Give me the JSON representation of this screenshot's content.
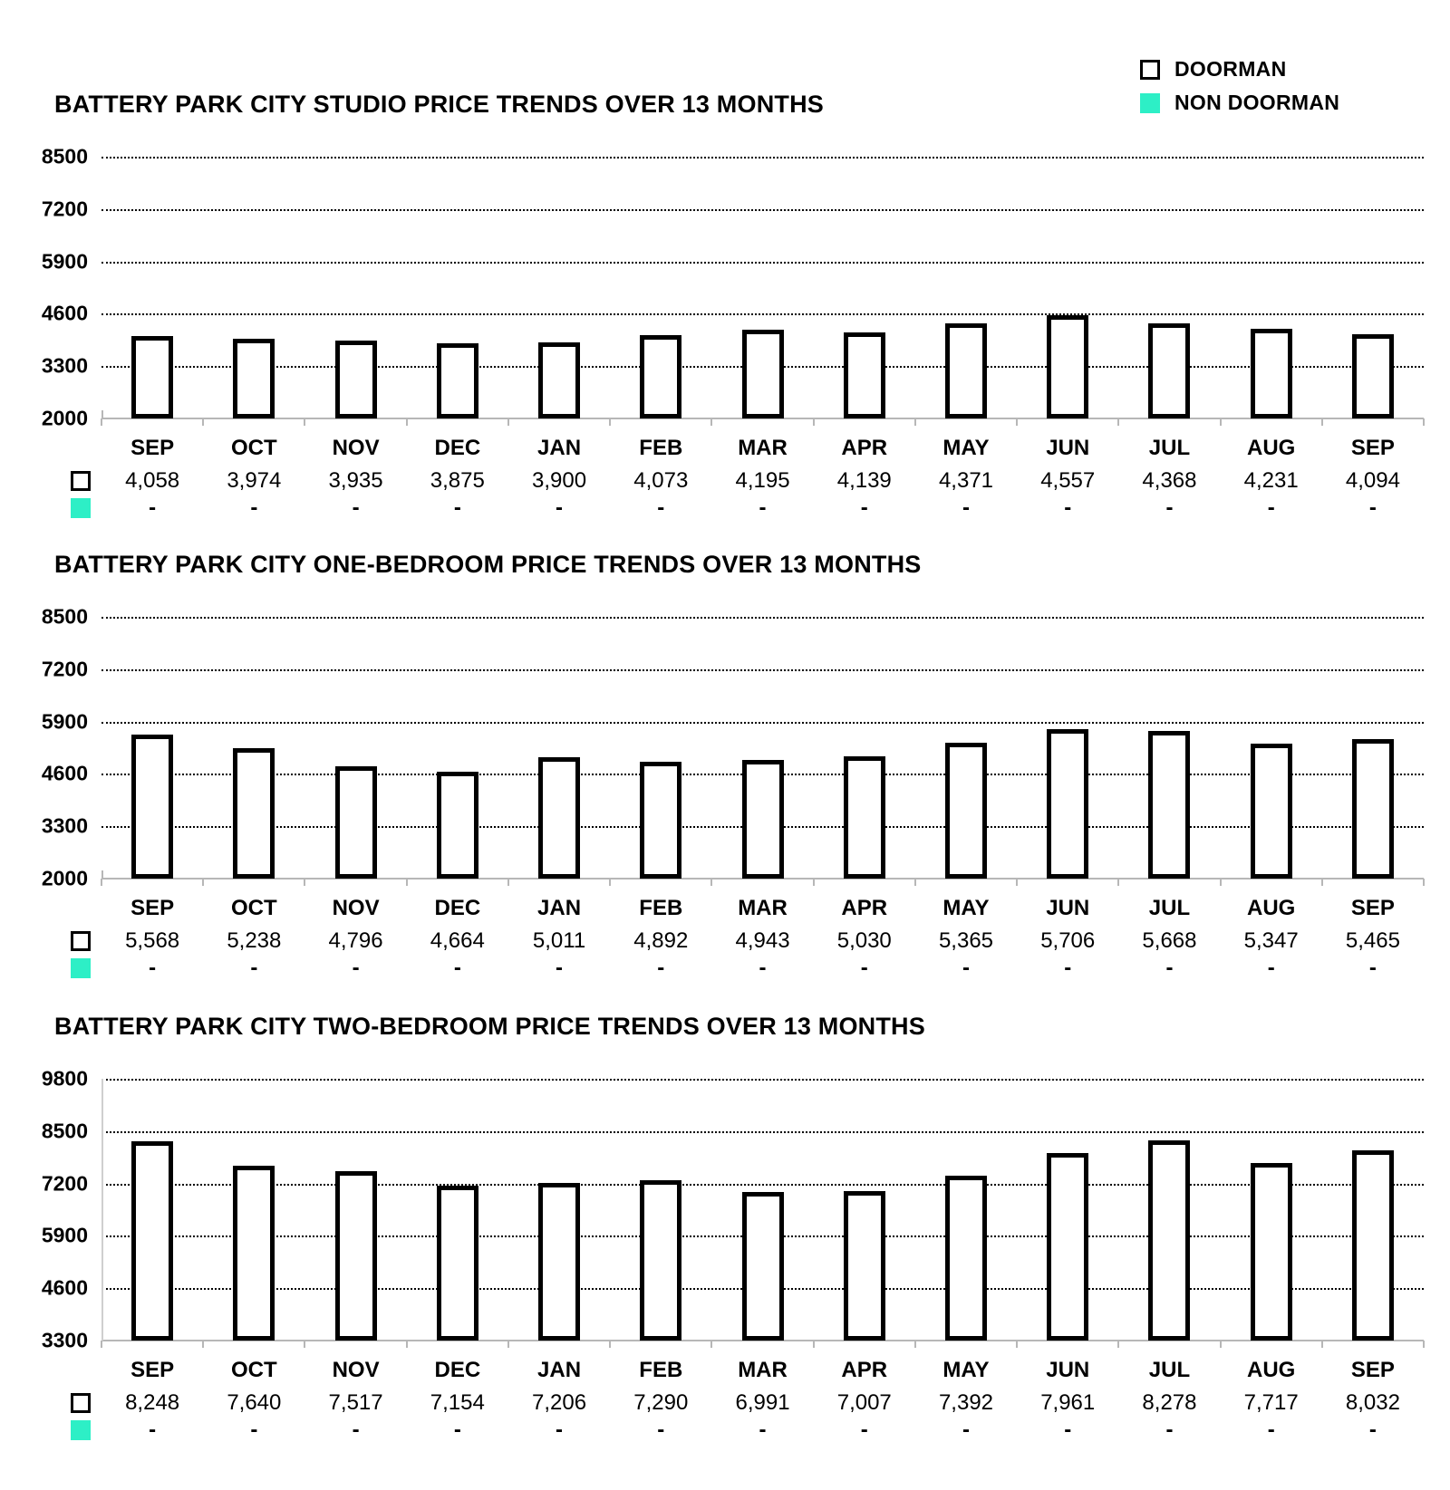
{
  "legend": {
    "items": [
      {
        "label": "DOORMAN",
        "swatch": "outline"
      },
      {
        "label": "NON DOORMAN",
        "swatch": "filled"
      }
    ]
  },
  "colors": {
    "non_doorman_swatch": "#2DEFC6",
    "doorman_swatch_border": "#000000",
    "bar_fill": "#ffffff",
    "bar_border": "#000000",
    "gridline": "#000000",
    "axis_line": "#b7b7b7",
    "text": "#000000"
  },
  "chart_data": [
    {
      "type": "bar",
      "title": "BATTERY PARK CITY STUDIO PRICE TRENDS OVER 13 MONTHS",
      "categories": [
        "SEP",
        "OCT",
        "NOV",
        "DEC",
        "JAN",
        "FEB",
        "MAR",
        "APR",
        "MAY",
        "JUN",
        "JUL",
        "AUG",
        "SEP"
      ],
      "series": [
        {
          "name": "DOORMAN",
          "values": [
            4058,
            3974,
            3935,
            3875,
            3900,
            4073,
            4195,
            4139,
            4371,
            4557,
            4368,
            4231,
            4094
          ],
          "labels": [
            "4,058",
            "3,974",
            "3,935",
            "3,875",
            "3,900",
            "4,073",
            "4,195",
            "4,139",
            "4,371",
            "4,557",
            "4,368",
            "4,231",
            "4,094"
          ]
        },
        {
          "name": "NON DOORMAN",
          "values": [
            null,
            null,
            null,
            null,
            null,
            null,
            null,
            null,
            null,
            null,
            null,
            null,
            null
          ],
          "labels": [
            "-",
            "-",
            "-",
            "-",
            "-",
            "-",
            "-",
            "-",
            "-",
            "-",
            "-",
            "-",
            "-"
          ]
        }
      ],
      "ylim": [
        2000,
        8500
      ],
      "yticks": [
        "8500",
        "7200",
        "5900",
        "4600",
        "3300",
        "2000"
      ],
      "grid": "horizontal-dotted",
      "legend_position": "top-right",
      "left_axis_line": false
    },
    {
      "type": "bar",
      "title": "BATTERY PARK CITY ONE-BEDROOM PRICE TRENDS OVER 13 MONTHS",
      "categories": [
        "SEP",
        "OCT",
        "NOV",
        "DEC",
        "JAN",
        "FEB",
        "MAR",
        "APR",
        "MAY",
        "JUN",
        "JUL",
        "AUG",
        "SEP"
      ],
      "series": [
        {
          "name": "DOORMAN",
          "values": [
            5568,
            5238,
            4796,
            4664,
            5011,
            4892,
            4943,
            5030,
            5365,
            5706,
            5668,
            5347,
            5465
          ],
          "labels": [
            "5,568",
            "5,238",
            "4,796",
            "4,664",
            "5,011",
            "4,892",
            "4,943",
            "5,030",
            "5,365",
            "5,706",
            "5,668",
            "5,347",
            "5,465"
          ]
        },
        {
          "name": "NON DOORMAN",
          "values": [
            null,
            null,
            null,
            null,
            null,
            null,
            null,
            null,
            null,
            null,
            null,
            null,
            null
          ],
          "labels": [
            "-",
            "-",
            "-",
            "-",
            "-",
            "-",
            "-",
            "-",
            "-",
            "-",
            "-",
            "-",
            "-"
          ]
        }
      ],
      "ylim": [
        2000,
        8500
      ],
      "yticks": [
        "8500",
        "7200",
        "5900",
        "4600",
        "3300",
        "2000"
      ],
      "grid": "horizontal-dotted",
      "legend_position": "top-right",
      "left_axis_line": false
    },
    {
      "type": "bar",
      "title": "BATTERY PARK CITY TWO-BEDROOM PRICE TRENDS OVER 13 MONTHS",
      "categories": [
        "SEP",
        "OCT",
        "NOV",
        "DEC",
        "JAN",
        "FEB",
        "MAR",
        "APR",
        "MAY",
        "JUN",
        "JUL",
        "AUG",
        "SEP"
      ],
      "series": [
        {
          "name": "DOORMAN",
          "values": [
            8248,
            7640,
            7517,
            7154,
            7206,
            7290,
            6991,
            7007,
            7392,
            7961,
            8278,
            7717,
            8032
          ],
          "labels": [
            "8,248",
            "7,640",
            "7,517",
            "7,154",
            "7,206",
            "7,290",
            "6,991",
            "7,007",
            "7,392",
            "7,961",
            "8,278",
            "7,717",
            "8,032"
          ]
        },
        {
          "name": "NON DOORMAN",
          "values": [
            null,
            null,
            null,
            null,
            null,
            null,
            null,
            null,
            null,
            null,
            null,
            null,
            null
          ],
          "labels": [
            "-",
            "-",
            "-",
            "-",
            "-",
            "-",
            "-",
            "-",
            "-",
            "-",
            "-",
            "-",
            "-"
          ]
        }
      ],
      "ylim": [
        3300,
        9800
      ],
      "yticks": [
        "9800",
        "8500",
        "7200",
        "5900",
        "4600",
        "3300"
      ],
      "grid": "horizontal-dotted",
      "legend_position": "top-right",
      "left_axis_line": true
    }
  ]
}
